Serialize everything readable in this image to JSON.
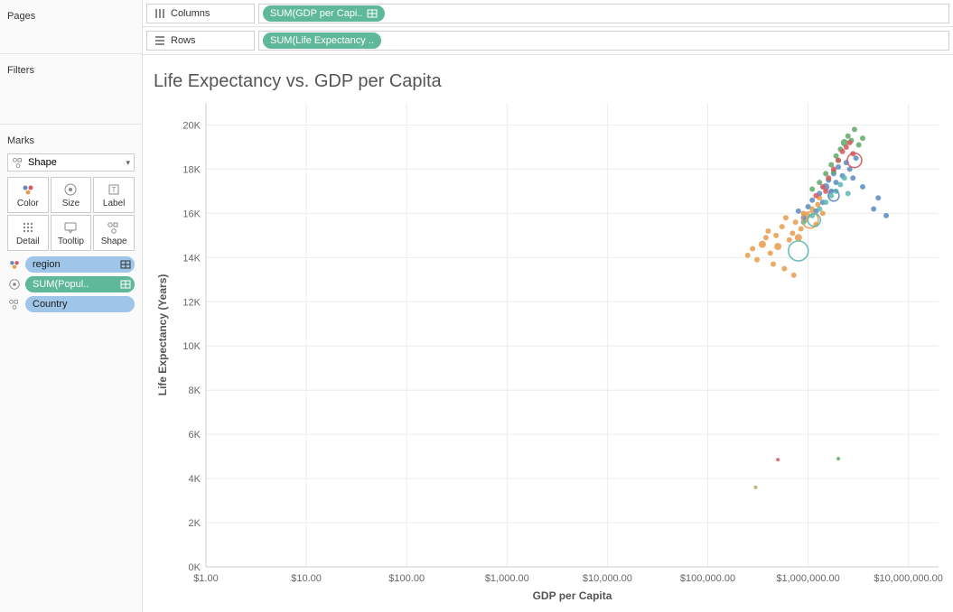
{
  "sidebar": {
    "pages_title": "Pages",
    "filters_title": "Filters",
    "marks_title": "Marks",
    "shape_selector_label": "Shape",
    "mark_buttons": {
      "color": "Color",
      "size": "Size",
      "label": "Label",
      "detail": "Detail",
      "tooltip": "Tooltip",
      "shape": "Shape"
    },
    "mark_pills": [
      {
        "icon": "color",
        "label": "region",
        "color": "blue",
        "has_action": true
      },
      {
        "icon": "size",
        "label": "SUM(Popul..",
        "color": "green",
        "has_action": true
      },
      {
        "icon": "shape",
        "label": "Country",
        "color": "blue",
        "has_action": false
      }
    ]
  },
  "shelves": {
    "columns_label": "Columns",
    "rows_label": "Rows",
    "columns_pill": "SUM(GDP per Capi..",
    "rows_pill": "SUM(Life Expectancy .."
  },
  "chart": {
    "title": "Life Expectancy vs. GDP per Capita",
    "xlabel": "GDP per Capita",
    "ylabel": "Life Expectancy (Years)",
    "plot_bg": "#ffffff",
    "grid_color": "#ececec",
    "axis_text_color": "#666666",
    "x_scale": "log",
    "x_ticks": [
      {
        "value": 1,
        "label": "$1.00"
      },
      {
        "value": 10,
        "label": "$10.00"
      },
      {
        "value": 100,
        "label": "$100.00"
      },
      {
        "value": 1000,
        "label": "$1,000.00"
      },
      {
        "value": 10000,
        "label": "$10,000.00"
      },
      {
        "value": 100000,
        "label": "$100,000.00"
      },
      {
        "value": 1000000,
        "label": "$1,000,000.00"
      },
      {
        "value": 10000000,
        "label": "$10,000,000.00"
      }
    ],
    "x_range_log10": [
      0,
      7.3
    ],
    "y_range": [
      0,
      21000
    ],
    "y_tick_step": 2000,
    "y_tick_suffix": "K",
    "colors": {
      "orange": "#e89b4b",
      "blue": "#5b8bbf",
      "green": "#5fa868",
      "red": "#d6585c",
      "teal": "#5bb8b0",
      "olive": "#b8a85b"
    },
    "points": [
      {
        "x": 250000,
        "y": 14100,
        "c": "orange",
        "r": 3,
        "open": false
      },
      {
        "x": 280000,
        "y": 14400,
        "c": "orange",
        "r": 3,
        "open": false
      },
      {
        "x": 310000,
        "y": 13900,
        "c": "orange",
        "r": 3,
        "open": false
      },
      {
        "x": 350000,
        "y": 14600,
        "c": "orange",
        "r": 4,
        "open": false
      },
      {
        "x": 380000,
        "y": 14900,
        "c": "orange",
        "r": 3,
        "open": false
      },
      {
        "x": 400000,
        "y": 15200,
        "c": "orange",
        "r": 3,
        "open": false
      },
      {
        "x": 420000,
        "y": 14200,
        "c": "orange",
        "r": 3,
        "open": false
      },
      {
        "x": 450000,
        "y": 13700,
        "c": "orange",
        "r": 3,
        "open": false
      },
      {
        "x": 480000,
        "y": 15000,
        "c": "orange",
        "r": 3,
        "open": false
      },
      {
        "x": 500000,
        "y": 14500,
        "c": "orange",
        "r": 4,
        "open": false
      },
      {
        "x": 550000,
        "y": 15400,
        "c": "orange",
        "r": 3,
        "open": false
      },
      {
        "x": 580000,
        "y": 13500,
        "c": "orange",
        "r": 3,
        "open": false
      },
      {
        "x": 600000,
        "y": 15800,
        "c": "orange",
        "r": 3,
        "open": false
      },
      {
        "x": 650000,
        "y": 14800,
        "c": "orange",
        "r": 3,
        "open": false
      },
      {
        "x": 700000,
        "y": 15100,
        "c": "orange",
        "r": 3,
        "open": false
      },
      {
        "x": 720000,
        "y": 13200,
        "c": "orange",
        "r": 3,
        "open": false
      },
      {
        "x": 750000,
        "y": 15600,
        "c": "orange",
        "r": 3,
        "open": false
      },
      {
        "x": 800000,
        "y": 14900,
        "c": "orange",
        "r": 4,
        "open": false
      },
      {
        "x": 850000,
        "y": 15300,
        "c": "orange",
        "r": 3,
        "open": false
      },
      {
        "x": 900000,
        "y": 16000,
        "c": "orange",
        "r": 3,
        "open": false
      },
      {
        "x": 950000,
        "y": 15700,
        "c": "orange",
        "r": 3,
        "open": false
      },
      {
        "x": 1000000,
        "y": 15900,
        "c": "orange",
        "r": 3,
        "open": false
      },
      {
        "x": 1100000,
        "y": 16200,
        "c": "orange",
        "r": 3,
        "open": false
      },
      {
        "x": 1200000,
        "y": 15500,
        "c": "orange",
        "r": 3,
        "open": false
      },
      {
        "x": 1250000,
        "y": 16400,
        "c": "orange",
        "r": 3,
        "open": false
      },
      {
        "x": 1300000,
        "y": 16700,
        "c": "orange",
        "r": 3,
        "open": false
      },
      {
        "x": 1400000,
        "y": 16000,
        "c": "orange",
        "r": 3,
        "open": false
      },
      {
        "x": 800000,
        "y": 16100,
        "c": "blue",
        "r": 3,
        "open": false
      },
      {
        "x": 900000,
        "y": 15800,
        "c": "blue",
        "r": 3,
        "open": false
      },
      {
        "x": 1000000,
        "y": 16300,
        "c": "blue",
        "r": 3,
        "open": false
      },
      {
        "x": 1100000,
        "y": 16600,
        "c": "blue",
        "r": 3,
        "open": false
      },
      {
        "x": 1200000,
        "y": 16100,
        "c": "blue",
        "r": 3,
        "open": false
      },
      {
        "x": 1300000,
        "y": 16900,
        "c": "blue",
        "r": 3,
        "open": false
      },
      {
        "x": 1400000,
        "y": 16500,
        "c": "blue",
        "r": 3,
        "open": false
      },
      {
        "x": 1500000,
        "y": 17200,
        "c": "blue",
        "r": 4,
        "open": false
      },
      {
        "x": 1600000,
        "y": 17500,
        "c": "blue",
        "r": 3,
        "open": false
      },
      {
        "x": 1700000,
        "y": 17000,
        "c": "blue",
        "r": 3,
        "open": false
      },
      {
        "x": 1800000,
        "y": 17800,
        "c": "blue",
        "r": 3,
        "open": false
      },
      {
        "x": 1900000,
        "y": 17400,
        "c": "blue",
        "r": 3,
        "open": false
      },
      {
        "x": 2000000,
        "y": 18100,
        "c": "blue",
        "r": 3,
        "open": false
      },
      {
        "x": 2200000,
        "y": 17700,
        "c": "blue",
        "r": 3,
        "open": false
      },
      {
        "x": 2400000,
        "y": 18300,
        "c": "blue",
        "r": 3,
        "open": false
      },
      {
        "x": 2600000,
        "y": 18000,
        "c": "blue",
        "r": 3,
        "open": false
      },
      {
        "x": 2800000,
        "y": 17600,
        "c": "blue",
        "r": 3,
        "open": false
      },
      {
        "x": 3000000,
        "y": 18500,
        "c": "blue",
        "r": 3,
        "open": false
      },
      {
        "x": 3500000,
        "y": 17200,
        "c": "blue",
        "r": 3,
        "open": false
      },
      {
        "x": 4500000,
        "y": 16200,
        "c": "blue",
        "r": 3,
        "open": false
      },
      {
        "x": 5000000,
        "y": 16700,
        "c": "blue",
        "r": 3,
        "open": false
      },
      {
        "x": 6000000,
        "y": 15900,
        "c": "blue",
        "r": 3,
        "open": false
      },
      {
        "x": 1100000,
        "y": 17100,
        "c": "green",
        "r": 3,
        "open": false
      },
      {
        "x": 1300000,
        "y": 17400,
        "c": "green",
        "r": 3,
        "open": false
      },
      {
        "x": 1500000,
        "y": 17800,
        "c": "green",
        "r": 3,
        "open": false
      },
      {
        "x": 1700000,
        "y": 18200,
        "c": "green",
        "r": 3,
        "open": false
      },
      {
        "x": 1900000,
        "y": 18600,
        "c": "green",
        "r": 3,
        "open": false
      },
      {
        "x": 2100000,
        "y": 18900,
        "c": "green",
        "r": 3,
        "open": false
      },
      {
        "x": 2300000,
        "y": 19200,
        "c": "green",
        "r": 4,
        "open": false
      },
      {
        "x": 2500000,
        "y": 19500,
        "c": "green",
        "r": 3,
        "open": false
      },
      {
        "x": 2700000,
        "y": 19300,
        "c": "green",
        "r": 3,
        "open": false
      },
      {
        "x": 2900000,
        "y": 19800,
        "c": "green",
        "r": 3,
        "open": false
      },
      {
        "x": 3200000,
        "y": 19100,
        "c": "green",
        "r": 3,
        "open": false
      },
      {
        "x": 3500000,
        "y": 19400,
        "c": "green",
        "r": 3,
        "open": false
      },
      {
        "x": 1800000,
        "y": 17900,
        "c": "green",
        "r": 3,
        "open": false
      },
      {
        "x": 2000000,
        "y": 18400,
        "c": "green",
        "r": 3,
        "open": false
      },
      {
        "x": 1200000,
        "y": 16800,
        "c": "red",
        "r": 3,
        "open": false
      },
      {
        "x": 1400000,
        "y": 17200,
        "c": "red",
        "r": 3,
        "open": false
      },
      {
        "x": 1600000,
        "y": 17600,
        "c": "red",
        "r": 3,
        "open": false
      },
      {
        "x": 1800000,
        "y": 18000,
        "c": "red",
        "r": 3,
        "open": false
      },
      {
        "x": 2000000,
        "y": 18400,
        "c": "red",
        "r": 3,
        "open": false
      },
      {
        "x": 2200000,
        "y": 18800,
        "c": "red",
        "r": 3,
        "open": false
      },
      {
        "x": 2400000,
        "y": 19000,
        "c": "red",
        "r": 3,
        "open": false
      },
      {
        "x": 2600000,
        "y": 19200,
        "c": "red",
        "r": 3,
        "open": false
      },
      {
        "x": 2800000,
        "y": 18700,
        "c": "red",
        "r": 3,
        "open": false
      },
      {
        "x": 1500000,
        "y": 17000,
        "c": "red",
        "r": 3,
        "open": false
      },
      {
        "x": 500000,
        "y": 4850,
        "c": "red",
        "r": 2,
        "open": false
      },
      {
        "x": 900000,
        "y": 15600,
        "c": "teal",
        "r": 3,
        "open": false
      },
      {
        "x": 1100000,
        "y": 15900,
        "c": "teal",
        "r": 3,
        "open": false
      },
      {
        "x": 1300000,
        "y": 16200,
        "c": "teal",
        "r": 3,
        "open": false
      },
      {
        "x": 1500000,
        "y": 16500,
        "c": "teal",
        "r": 3,
        "open": false
      },
      {
        "x": 1700000,
        "y": 16800,
        "c": "teal",
        "r": 3,
        "open": false
      },
      {
        "x": 1900000,
        "y": 17000,
        "c": "teal",
        "r": 3,
        "open": false
      },
      {
        "x": 2100000,
        "y": 17300,
        "c": "teal",
        "r": 3,
        "open": false
      },
      {
        "x": 2300000,
        "y": 17600,
        "c": "teal",
        "r": 3,
        "open": false
      },
      {
        "x": 2500000,
        "y": 16900,
        "c": "teal",
        "r": 3,
        "open": false
      },
      {
        "x": 300000,
        "y": 3600,
        "c": "olive",
        "r": 2,
        "open": false
      },
      {
        "x": 2000000,
        "y": 4900,
        "c": "green",
        "r": 2,
        "open": false
      },
      {
        "x": 1050000,
        "y": 15700,
        "c": "orange",
        "r": 9,
        "open": true
      },
      {
        "x": 800000,
        "y": 14300,
        "c": "teal",
        "r": 11,
        "open": true
      },
      {
        "x": 1150000,
        "y": 15700,
        "c": "teal",
        "r": 7,
        "open": true
      },
      {
        "x": 2900000,
        "y": 18400,
        "c": "red",
        "r": 8,
        "open": true
      },
      {
        "x": 1800000,
        "y": 16800,
        "c": "blue",
        "r": 6,
        "open": true
      }
    ]
  }
}
